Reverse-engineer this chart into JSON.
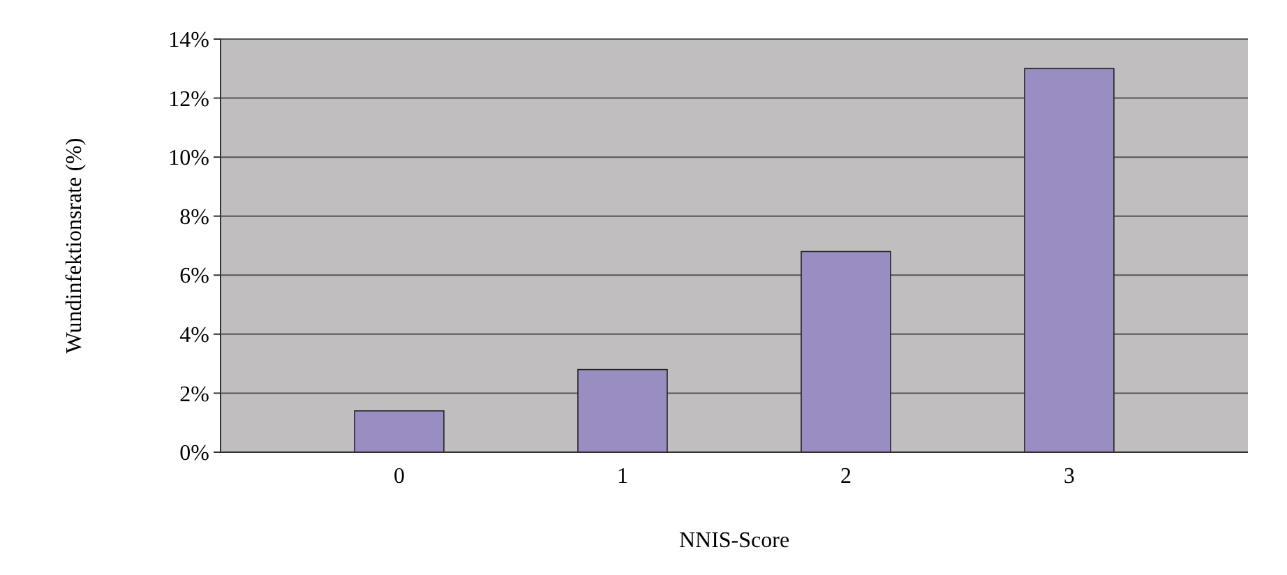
{
  "chart_data": {
    "type": "bar",
    "xlabel": "NNIS-Score",
    "ylabel": "Wundinfektionsrate (%)",
    "categories": [
      "0",
      "1",
      "2",
      "3"
    ],
    "values": [
      1.4,
      2.8,
      6.8,
      13.0
    ],
    "color": "#9a8dc2",
    "ylim": [
      0,
      14
    ],
    "yticks": [
      {
        "value": 0,
        "label": "0%"
      },
      {
        "value": 2,
        "label": "2%"
      },
      {
        "value": 4,
        "label": "4%"
      },
      {
        "value": 6,
        "label": "6%"
      },
      {
        "value": 8,
        "label": "8%"
      },
      {
        "value": 10,
        "label": "10%"
      },
      {
        "value": 12,
        "label": "12%"
      },
      {
        "value": 14,
        "label": "14%"
      }
    ],
    "grid": "y"
  }
}
